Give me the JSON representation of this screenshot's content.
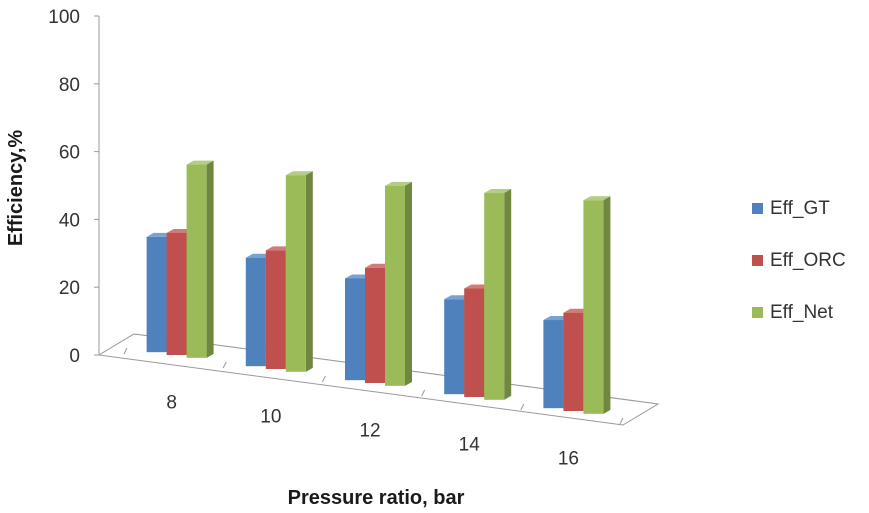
{
  "chart_data": {
    "type": "bar",
    "categories": [
      "8",
      "10",
      "12",
      "14",
      "16"
    ],
    "series": [
      {
        "name": "Eff_GT",
        "values": [
          34,
          32,
          30,
          28,
          26
        ],
        "color": "#4f81bd"
      },
      {
        "name": "Eff_ORC",
        "values": [
          36,
          35,
          34,
          32,
          29
        ],
        "color": "#c0504d"
      },
      {
        "name": "Eff_Net",
        "values": [
          57,
          58,
          59,
          61,
          63
        ],
        "color": "#9bbb59"
      }
    ],
    "title": "",
    "xlabel": "Pressure ratio, bar",
    "ylabel": "Efficiency,%",
    "ylim": [
      0,
      100
    ],
    "yticks": [
      "0",
      "20",
      "40",
      "60",
      "80",
      "100"
    ],
    "legend_position": "right",
    "grid": false,
    "style": "3d-clustered-column"
  }
}
